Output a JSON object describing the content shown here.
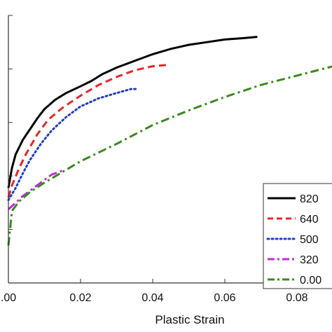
{
  "chart_data": {
    "type": "line",
    "title": "",
    "xlabel": "Plastic Strain",
    "ylabel": "",
    "xlim": [
      -0.001,
      0.1
    ],
    "ylim": [
      0,
      1
    ],
    "x_ticks": [
      0.0,
      0.02,
      0.04,
      0.06,
      0.08
    ],
    "x_tick_labels": [
      ".00",
      "0.02",
      "0.04",
      "0.06",
      "0.08"
    ],
    "y_ticks": [
      0.0,
      0.2,
      0.4,
      0.6,
      0.8,
      1.0
    ],
    "grid": false,
    "legend_placement": "bottom-right",
    "series": [
      {
        "name": "820",
        "color": "#000000",
        "dash": "solid",
        "x": [
          0.0,
          0.001,
          0.002,
          0.004,
          0.006,
          0.008,
          0.01,
          0.013,
          0.016,
          0.02,
          0.023,
          0.026,
          0.03,
          0.035,
          0.04,
          0.045,
          0.05,
          0.055,
          0.06,
          0.065,
          0.069
        ],
        "y": [
          0.355,
          0.43,
          0.48,
          0.535,
          0.575,
          0.615,
          0.65,
          0.685,
          0.71,
          0.735,
          0.755,
          0.78,
          0.805,
          0.83,
          0.855,
          0.875,
          0.89,
          0.9,
          0.91,
          0.915,
          0.92
        ]
      },
      {
        "name": "640",
        "color": "#e8262a",
        "dash": "dashed",
        "x": [
          0.0,
          0.001,
          0.003,
          0.005,
          0.008,
          0.011,
          0.015,
          0.02,
          0.025,
          0.03,
          0.035,
          0.04,
          0.044
        ],
        "y": [
          0.32,
          0.365,
          0.43,
          0.485,
          0.555,
          0.61,
          0.655,
          0.7,
          0.74,
          0.77,
          0.795,
          0.81,
          0.815
        ]
      },
      {
        "name": "500",
        "color": "#1f3fc6",
        "dash": "dotted",
        "x": [
          0.0,
          0.002,
          0.004,
          0.006,
          0.009,
          0.012,
          0.016,
          0.02,
          0.025,
          0.03,
          0.034,
          0.036
        ],
        "y": [
          0.31,
          0.355,
          0.41,
          0.46,
          0.52,
          0.57,
          0.62,
          0.66,
          0.69,
          0.71,
          0.725,
          0.725
        ]
      },
      {
        "name": "320",
        "color": "#c02bd9",
        "dash": "dash-dot",
        "x": [
          0.0,
          0.002,
          0.004,
          0.006,
          0.008,
          0.01,
          0.012,
          0.015
        ],
        "y": [
          0.275,
          0.3,
          0.325,
          0.345,
          0.365,
          0.385,
          0.405,
          0.42
        ]
      },
      {
        "name": "0.00",
        "color": "#3a8a1c",
        "dash": "dash-dot",
        "x": [
          0.0,
          0.001,
          0.003,
          0.006,
          0.01,
          0.015,
          0.02,
          0.03,
          0.04,
          0.05,
          0.06,
          0.07,
          0.08,
          0.09,
          0.1
        ],
        "y": [
          0.14,
          0.27,
          0.305,
          0.34,
          0.375,
          0.415,
          0.455,
          0.52,
          0.59,
          0.645,
          0.695,
          0.74,
          0.775,
          0.81,
          0.84
        ]
      }
    ]
  }
}
